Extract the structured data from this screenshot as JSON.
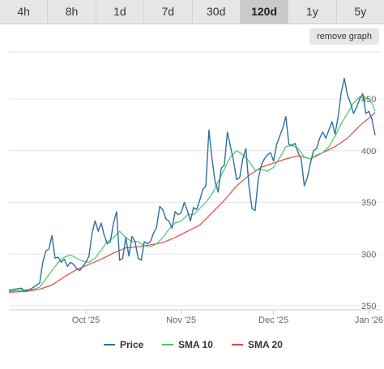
{
  "tabs": [
    {
      "label": "4h",
      "active": false
    },
    {
      "label": "8h",
      "active": false
    },
    {
      "label": "1d",
      "active": false
    },
    {
      "label": "7d",
      "active": false
    },
    {
      "label": "30d",
      "active": false
    },
    {
      "label": "120d",
      "active": true
    },
    {
      "label": "1y",
      "active": false
    },
    {
      "label": "5y",
      "active": false
    }
  ],
  "remove_graph_label": "remove graph",
  "chart_data": {
    "type": "line",
    "title": "",
    "xlabel": "",
    "ylabel": "",
    "ylim": [
      250,
      480
    ],
    "yticks": [
      250,
      300,
      350,
      400,
      450
    ],
    "x_ticks": [
      {
        "label": "Oct '25",
        "day": 25
      },
      {
        "label": "Nov '25",
        "day": 56
      },
      {
        "label": "Dec '25",
        "day": 86
      },
      {
        "label": "Jan '26",
        "day": 117
      }
    ],
    "legend_position": "bottom",
    "grid": true,
    "series": [
      {
        "name": "Price",
        "color": "#2f6f9e",
        "values": [
          [
            0,
            265
          ],
          [
            2,
            266
          ],
          [
            4,
            267
          ],
          [
            5,
            264
          ],
          [
            7,
            266
          ],
          [
            9,
            270
          ],
          [
            10,
            272
          ],
          [
            11,
            292
          ],
          [
            12,
            303
          ],
          [
            13,
            305
          ],
          [
            14,
            318
          ],
          [
            15,
            296
          ],
          [
            16,
            297
          ],
          [
            17,
            292
          ],
          [
            18,
            295
          ],
          [
            19,
            288
          ],
          [
            20,
            292
          ],
          [
            21,
            290
          ],
          [
            22,
            286
          ],
          [
            23,
            284
          ],
          [
            24,
            288
          ],
          [
            25,
            292
          ],
          [
            26,
            298
          ],
          [
            27,
            320
          ],
          [
            28,
            332
          ],
          [
            29,
            322
          ],
          [
            30,
            330
          ],
          [
            31,
            318
          ],
          [
            32,
            310
          ],
          [
            33,
            312
          ],
          [
            34,
            330
          ],
          [
            35,
            341
          ],
          [
            36,
            294
          ],
          [
            37,
            296
          ],
          [
            38,
            316
          ],
          [
            39,
            298
          ],
          [
            40,
            317
          ],
          [
            41,
            312
          ],
          [
            42,
            296
          ],
          [
            43,
            294
          ],
          [
            44,
            312
          ],
          [
            45,
            310
          ],
          [
            46,
            312
          ],
          [
            47,
            320
          ],
          [
            48,
            326
          ],
          [
            49,
            346
          ],
          [
            50,
            343
          ],
          [
            51,
            334
          ],
          [
            52,
            332
          ],
          [
            53,
            325
          ],
          [
            54,
            341
          ],
          [
            55,
            338
          ],
          [
            56,
            340
          ],
          [
            57,
            350
          ],
          [
            58,
            342
          ],
          [
            59,
            332
          ],
          [
            60,
            345
          ],
          [
            61,
            343
          ],
          [
            62,
            352
          ],
          [
            63,
            362
          ],
          [
            64,
            366
          ],
          [
            65,
            420
          ],
          [
            66,
            392
          ],
          [
            67,
            370
          ],
          [
            68,
            360
          ],
          [
            69,
            383
          ],
          [
            70,
            386
          ],
          [
            71,
            418
          ],
          [
            72,
            404
          ],
          [
            73,
            390
          ],
          [
            74,
            372
          ],
          [
            75,
            374
          ],
          [
            76,
            392
          ],
          [
            77,
            402
          ],
          [
            78,
            366
          ],
          [
            79,
            344
          ],
          [
            80,
            342
          ],
          [
            81,
            372
          ],
          [
            82,
            386
          ],
          [
            83,
            392
          ],
          [
            84,
            396
          ],
          [
            85,
            398
          ],
          [
            86,
            390
          ],
          [
            87,
            406
          ],
          [
            88,
            414
          ],
          [
            89,
            422
          ],
          [
            90,
            433
          ],
          [
            91,
            406
          ],
          [
            92,
            405
          ],
          [
            93,
            407
          ],
          [
            94,
            398
          ],
          [
            95,
            392
          ],
          [
            96,
            366
          ],
          [
            97,
            374
          ],
          [
            98,
            388
          ],
          [
            99,
            400
          ],
          [
            100,
            402
          ],
          [
            101,
            412
          ],
          [
            102,
            418
          ],
          [
            103,
            412
          ],
          [
            104,
            420
          ],
          [
            105,
            428
          ],
          [
            106,
            416
          ],
          [
            107,
            433
          ],
          [
            108,
            456
          ],
          [
            109,
            470
          ],
          [
            110,
            454
          ],
          [
            111,
            446
          ],
          [
            112,
            436
          ],
          [
            113,
            442
          ],
          [
            114,
            450
          ],
          [
            115,
            455
          ],
          [
            116,
            436
          ],
          [
            117,
            438
          ],
          [
            118,
            430
          ],
          [
            119,
            415
          ]
        ]
      },
      {
        "name": "SMA 10",
        "color": "#47c86a",
        "values": [
          [
            0,
            264
          ],
          [
            4,
            265
          ],
          [
            8,
            266
          ],
          [
            10,
            268
          ],
          [
            12,
            276
          ],
          [
            14,
            284
          ],
          [
            16,
            292
          ],
          [
            18,
            297
          ],
          [
            20,
            299
          ],
          [
            22,
            296
          ],
          [
            24,
            293
          ],
          [
            26,
            292
          ],
          [
            28,
            296
          ],
          [
            30,
            304
          ],
          [
            32,
            312
          ],
          [
            34,
            316
          ],
          [
            36,
            322
          ],
          [
            38,
            316
          ],
          [
            40,
            312
          ],
          [
            42,
            312
          ],
          [
            44,
            308
          ],
          [
            46,
            307
          ],
          [
            48,
            310
          ],
          [
            50,
            316
          ],
          [
            52,
            324
          ],
          [
            54,
            330
          ],
          [
            56,
            332
          ],
          [
            58,
            338
          ],
          [
            60,
            338
          ],
          [
            62,
            344
          ],
          [
            64,
            350
          ],
          [
            66,
            358
          ],
          [
            68,
            370
          ],
          [
            70,
            382
          ],
          [
            72,
            394
          ],
          [
            74,
            400
          ],
          [
            76,
            396
          ],
          [
            78,
            390
          ],
          [
            80,
            381
          ],
          [
            82,
            382
          ],
          [
            84,
            380
          ],
          [
            86,
            384
          ],
          [
            88,
            393
          ],
          [
            90,
            404
          ],
          [
            92,
            405
          ],
          [
            94,
            402
          ],
          [
            96,
            394
          ],
          [
            98,
            392
          ],
          [
            100,
            396
          ],
          [
            102,
            398
          ],
          [
            104,
            404
          ],
          [
            106,
            414
          ],
          [
            108,
            426
          ],
          [
            110,
            436
          ],
          [
            112,
            446
          ],
          [
            114,
            452
          ],
          [
            116,
            451
          ],
          [
            118,
            446
          ],
          [
            119,
            438
          ]
        ]
      },
      {
        "name": "SMA 20",
        "color": "#e8473c",
        "values": [
          [
            0,
            263
          ],
          [
            6,
            264
          ],
          [
            10,
            266
          ],
          [
            14,
            270
          ],
          [
            18,
            278
          ],
          [
            22,
            285
          ],
          [
            26,
            290
          ],
          [
            30,
            295
          ],
          [
            34,
            301
          ],
          [
            38,
            306
          ],
          [
            42,
            307
          ],
          [
            46,
            309
          ],
          [
            50,
            311
          ],
          [
            54,
            316
          ],
          [
            58,
            322
          ],
          [
            62,
            328
          ],
          [
            66,
            340
          ],
          [
            70,
            352
          ],
          [
            74,
            366
          ],
          [
            78,
            376
          ],
          [
            82,
            384
          ],
          [
            86,
            388
          ],
          [
            90,
            392
          ],
          [
            94,
            395
          ],
          [
            98,
            392
          ],
          [
            102,
            398
          ],
          [
            106,
            404
          ],
          [
            110,
            412
          ],
          [
            114,
            424
          ],
          [
            118,
            434
          ],
          [
            119,
            437
          ]
        ]
      }
    ]
  }
}
